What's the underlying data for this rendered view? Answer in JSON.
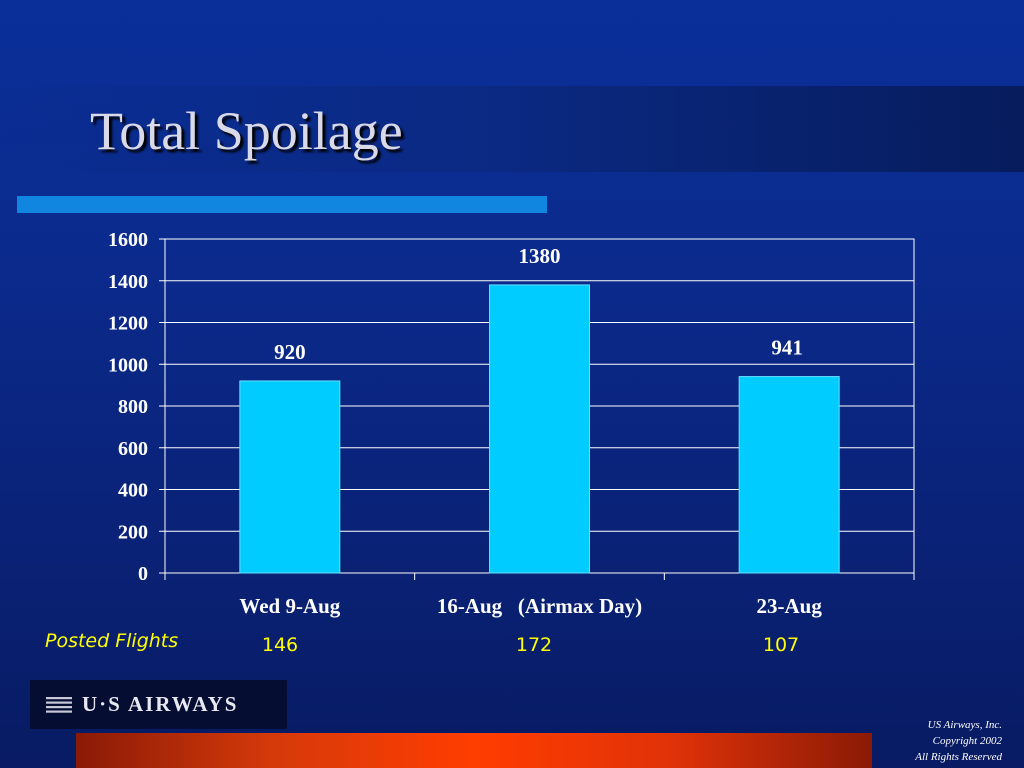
{
  "slide": {
    "title": "Total Spoilage",
    "posted_flights_label": "Posted Flights",
    "posted_flights": [
      "146",
      "172",
      "107"
    ],
    "logo_text": "U·S AIRWAYS",
    "copyright_lines": [
      "US Airways, Inc.",
      "Copyright 2002",
      "All Rights Reserved"
    ]
  },
  "colors": {
    "bar": "#00ccff",
    "flights_text": "#ffff00",
    "title": "#d9d9e8",
    "accent_bar": "#1186e0",
    "bottom_bar": "#ff3d00"
  },
  "chart_data": {
    "type": "bar",
    "categories": [
      "Wed 9-Aug",
      "16-Aug   (Airmax Day)",
      "23-Aug"
    ],
    "values": [
      920,
      1380,
      941
    ],
    "data_labels": [
      "920",
      "1380",
      "941"
    ],
    "yticks": [
      "0",
      "200",
      "400",
      "600",
      "800",
      "1000",
      "1200",
      "1400",
      "1600"
    ],
    "ylim": [
      0,
      1600
    ],
    "grid": true,
    "title": "",
    "xlabel": "",
    "ylabel": ""
  }
}
